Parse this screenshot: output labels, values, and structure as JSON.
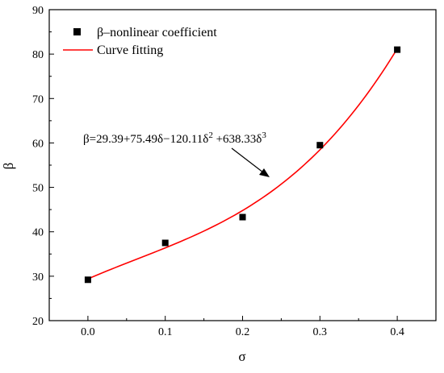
{
  "chart_data": {
    "type": "scatter",
    "xlabel": "σ",
    "ylabel": "β",
    "xlim": [
      -0.05,
      0.45
    ],
    "ylim": [
      20,
      90
    ],
    "x_ticks": [
      "0.0",
      "0.1",
      "0.2",
      "0.3",
      "0.4"
    ],
    "x_tick_values": [
      0.0,
      0.1,
      0.2,
      0.3,
      0.4
    ],
    "y_ticks": [
      "20",
      "30",
      "40",
      "50",
      "60",
      "70",
      "80",
      "90"
    ],
    "y_tick_values": [
      20,
      30,
      40,
      50,
      60,
      70,
      80,
      90
    ],
    "grid": false,
    "legend_position": "top-left",
    "series": [
      {
        "name": "β–nonlinear coefficient",
        "kind": "scatter",
        "color": "#000000",
        "marker": "square",
        "x": [
          0.0,
          0.1,
          0.2,
          0.3,
          0.4
        ],
        "y": [
          29.2,
          37.5,
          43.3,
          59.5,
          81.0
        ]
      },
      {
        "name": "Curve fitting",
        "kind": "line",
        "color": "#ff0000",
        "coefficients": [
          29.39,
          75.49,
          -120.11,
          638.33
        ],
        "x_range": [
          0.0,
          0.4
        ]
      }
    ],
    "annotation": {
      "text_main": "β=29.39+75.49δ−120.11δ",
      "sup1": "2",
      "text_mid": " +638.33δ",
      "sup2": "3"
    }
  }
}
